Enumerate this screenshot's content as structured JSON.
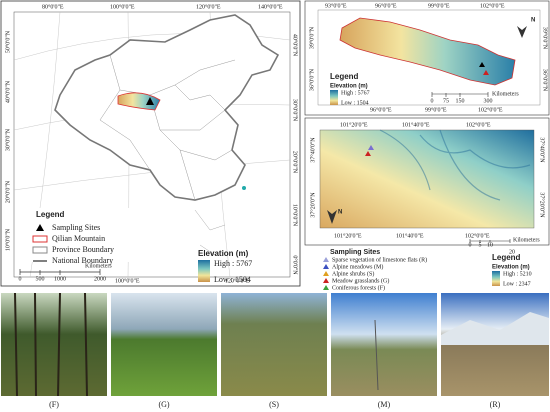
{
  "left_map": {
    "top_lon": [
      "80°0'0\"E",
      "100°0'0\"E",
      "120°0'0\"E",
      "140°0'0\"E"
    ],
    "left_lat": [
      "50°0'0\"N",
      "40°0'0\"N",
      "30°0'0\"N",
      "20°0'0\"N",
      "10°0'0\"N"
    ],
    "right_lat": [
      "40°0'0\"N",
      "30°0'0\"N",
      "20°0'0\"N",
      "10°0'0\"N",
      "0°0'0\"N"
    ],
    "bottom_lon": [
      "100°0'0\"E",
      "120°0'0\"E"
    ],
    "legend": {
      "title": "Legend",
      "items": [
        "Sampling Sites",
        "Qilian Mountain",
        "Province Boundary",
        "National Boundary"
      ]
    },
    "elevation": {
      "title": "Elevation (m)",
      "high": "High : 5767",
      "low": "Low : 1504"
    },
    "scale": {
      "unit": "Kilometers",
      "ticks": [
        "0",
        "500",
        "1000",
        "2000"
      ]
    }
  },
  "top_right_map": {
    "top_lon": [
      "93°0'0\"E",
      "96°0'0\"E",
      "99°0'0\"E",
      "102°0'0\"E"
    ],
    "lat": [
      "39°0'0\"N",
      "36°0'0\"N"
    ],
    "bottom_lon": [
      "96°0'0\"E",
      "99°0'0\"E",
      "102°0'0\"E"
    ],
    "north": "N",
    "legend": {
      "title": "Legend",
      "elevation": "Elevation (m)",
      "high": "High : 5767",
      "low": "Low : 1504"
    },
    "scale": {
      "unit": "Kilometers",
      "ticks": [
        "0",
        "75",
        "150",
        "300"
      ]
    }
  },
  "mid_right_map": {
    "top_lon": [
      "101°20'0\"E",
      "101°40'0\"E",
      "102°0'0\"E"
    ],
    "lat": [
      "37°40'0\"N",
      "37°20'0\"N"
    ],
    "bottom_lon": [
      "101°20'0\"E",
      "101°40'0\"E",
      "102°0'0\"E"
    ],
    "north": "N",
    "scale": {
      "unit": "Kilometers",
      "ticks": [
        "0",
        "5",
        "10",
        "20"
      ]
    }
  },
  "sites_legend": {
    "title": "Sampling Sites",
    "items": [
      "Sparse vegetation of limestone flats (R)",
      "Alpine meadows (M)",
      "Alpine shrubs (S)",
      "Meadow grasslands (G)",
      "Coniferous forests (F)"
    ]
  },
  "elev_legend": {
    "title": "Legend",
    "elevation": "Elevation (m)",
    "high": "High : 5210",
    "low": "Low : 2347"
  },
  "photos": [
    "(F)",
    "(G)",
    "(S)",
    "(M)",
    "(R)"
  ]
}
